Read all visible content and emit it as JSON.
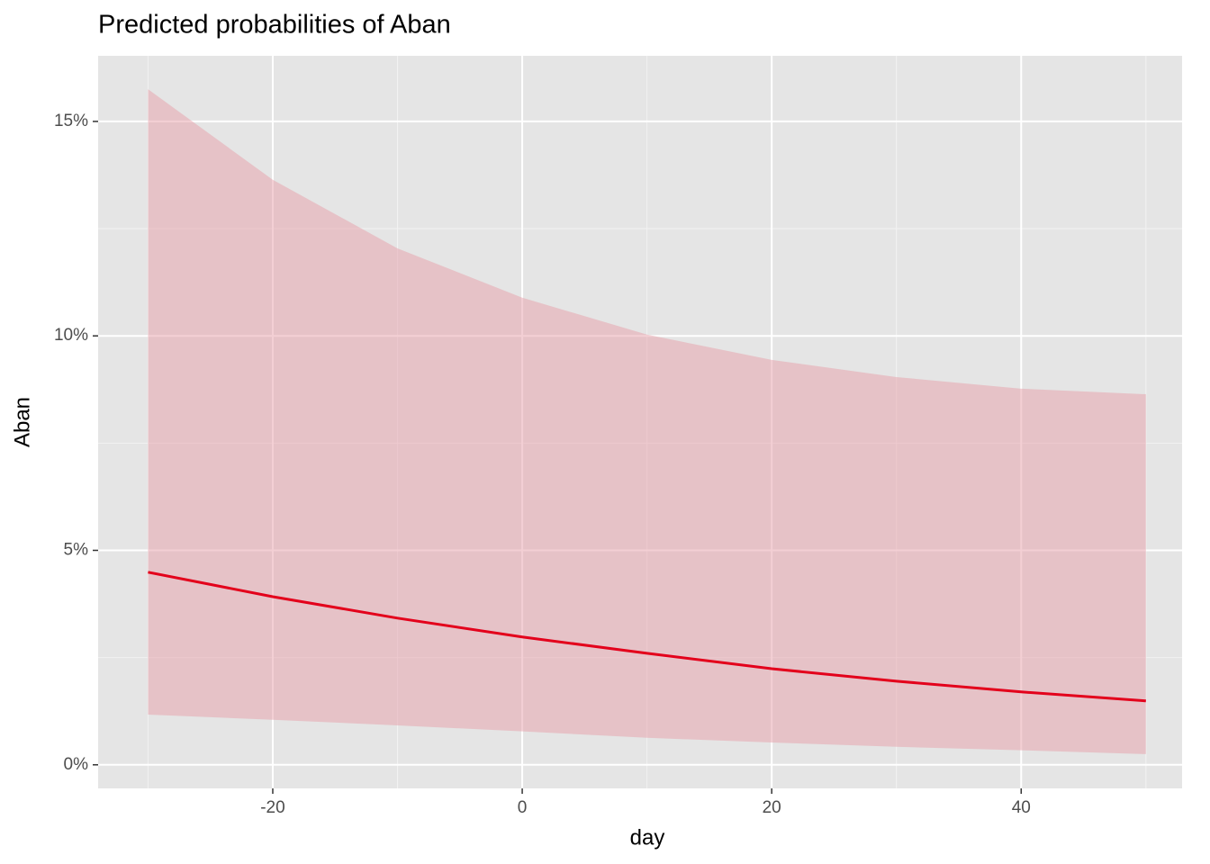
{
  "chart_data": {
    "type": "line",
    "title": "Predicted probabilities of Aban",
    "x_label": "day",
    "y_label": "Aban",
    "x": [
      -30,
      -20,
      -10,
      0,
      10,
      20,
      30,
      40,
      50
    ],
    "values": [
      4.49,
      3.92,
      3.42,
      2.98,
      2.6,
      2.24,
      1.95,
      1.7,
      1.49
    ],
    "upper": [
      15.75,
      13.64,
      12.04,
      10.89,
      10.03,
      9.44,
      9.04,
      8.77,
      8.64
    ],
    "lower": [
      1.17,
      1.05,
      0.92,
      0.78,
      0.63,
      0.52,
      0.42,
      0.34,
      0.25
    ],
    "color": "#e3001b",
    "band_color": "#e8a0aa",
    "xlim": [
      -34,
      52.9
    ],
    "ylim": [
      -0.55,
      16.53
    ],
    "xticks": [
      -20,
      0,
      20,
      40
    ],
    "yticks": [
      {
        "value": 0,
        "label": "0%"
      },
      {
        "value": 5,
        "label": "5%"
      },
      {
        "value": 10,
        "label": "10%"
      },
      {
        "value": 15,
        "label": "15%"
      }
    ],
    "xminor": [
      -30,
      -10,
      10,
      30,
      50
    ],
    "yminor": [
      2.5,
      7.5,
      12.5
    ],
    "grid": true
  }
}
